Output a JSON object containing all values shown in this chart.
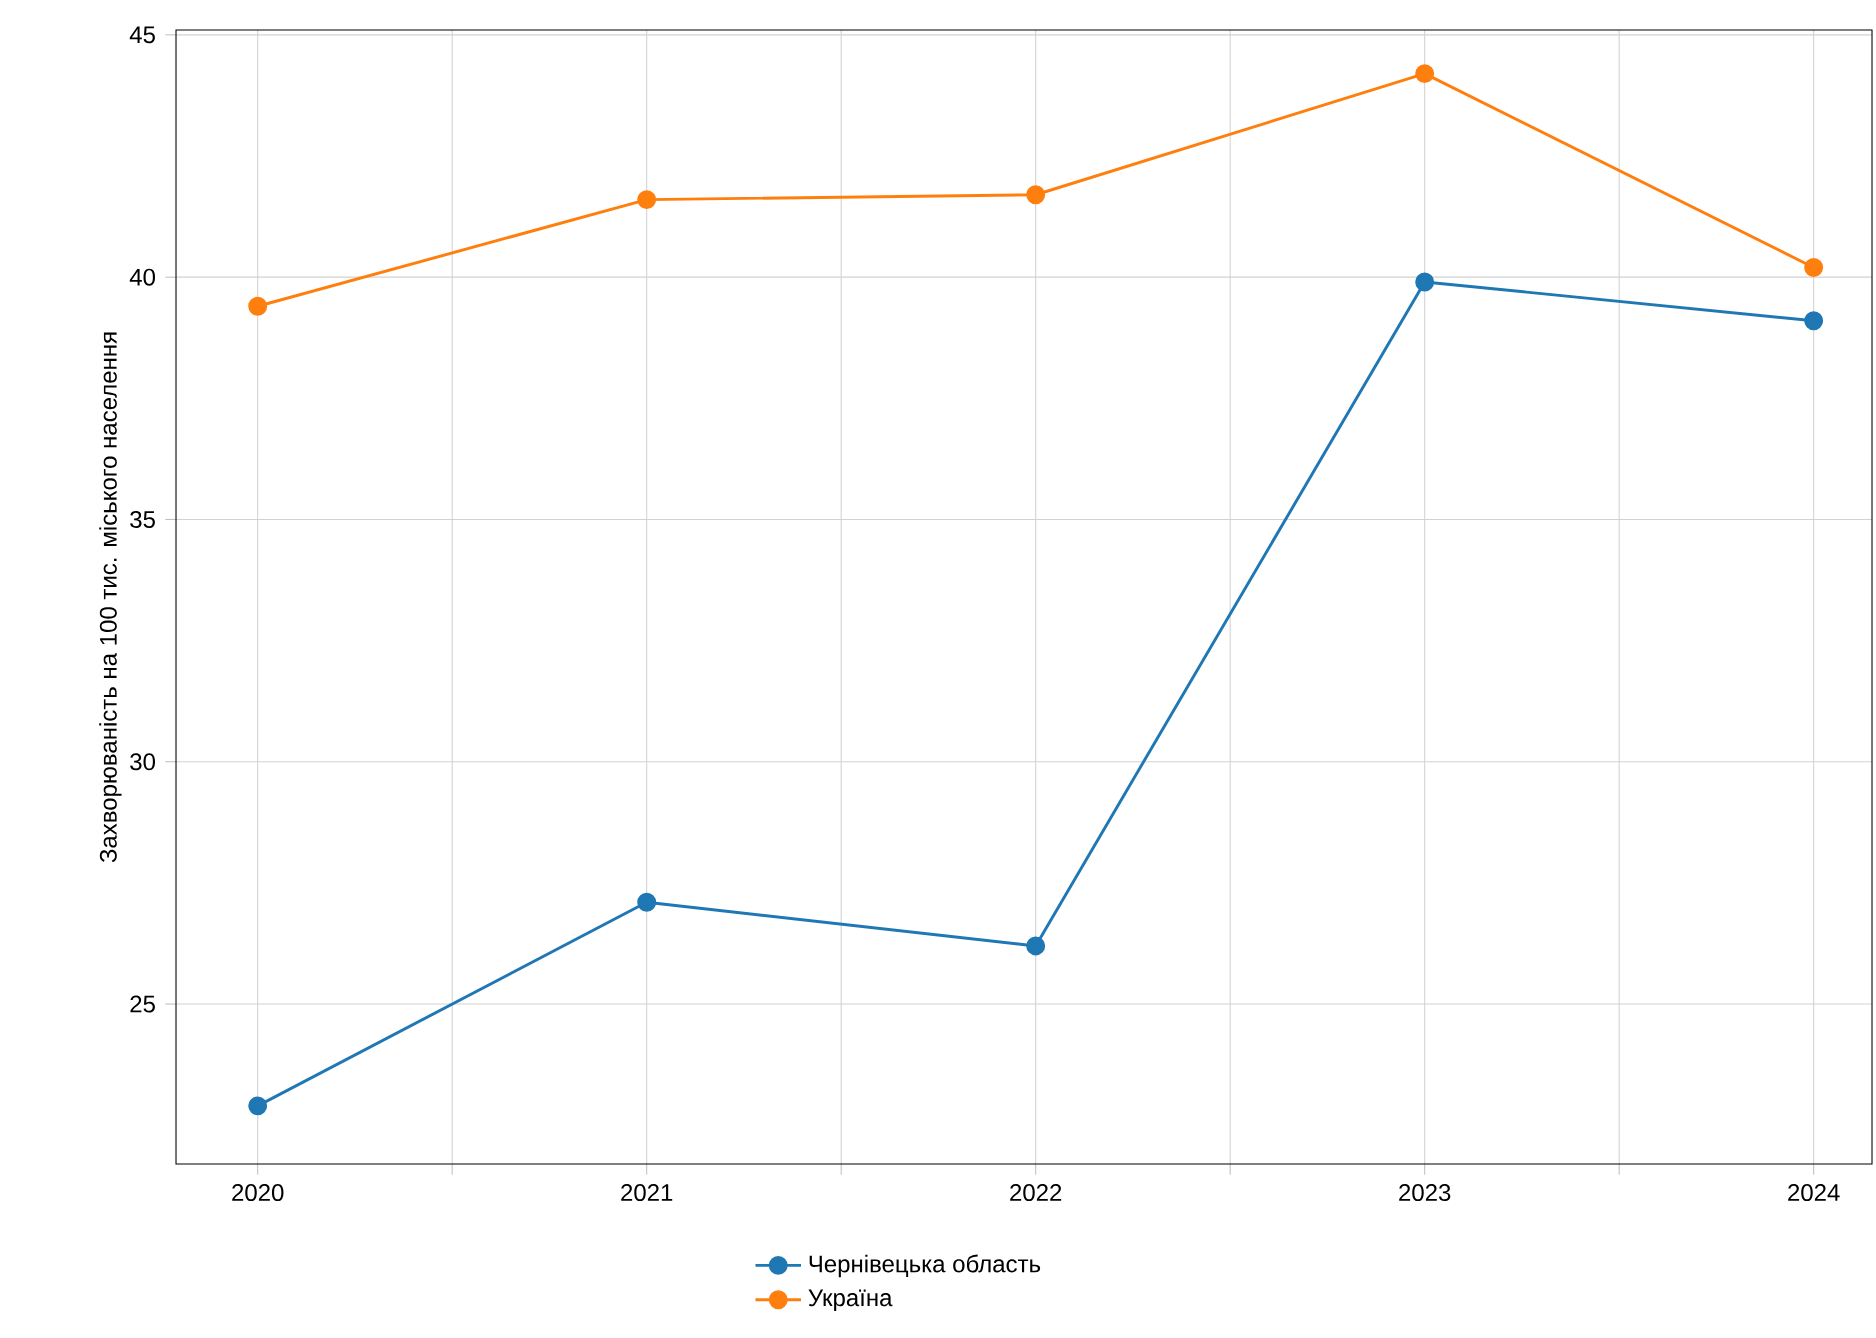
{
  "chart_data": {
    "type": "line",
    "ylabel": "Захворюваність на 100 тис. міського населення",
    "x": [
      2020,
      2021,
      2022,
      2023,
      2024
    ],
    "series": [
      {
        "name": "Чернівецька область",
        "color": "#1f77b4",
        "values": [
          22.9,
          27.1,
          26.2,
          39.9,
          39.1
        ]
      },
      {
        "name": "Україна",
        "color": "#ff7f0e",
        "values": [
          39.4,
          41.6,
          41.7,
          44.2,
          40.2
        ]
      }
    ],
    "xlim": [
      2019.79,
      2024.15
    ],
    "ylim": [
      21.7,
      45.1
    ],
    "xticks": [
      2020,
      {
        "value": 2020.5,
        "label": null
      },
      2021,
      {
        "value": 2021.5,
        "label": null
      },
      2022,
      {
        "value": 2022.5,
        "label": null
      },
      2023,
      {
        "value": 2023.5,
        "label": null
      },
      2024
    ],
    "yticks": [
      25,
      30,
      35,
      40,
      45
    ],
    "grid": true,
    "legend": "bottom",
    "marker": "circle",
    "line_style": "solid"
  }
}
